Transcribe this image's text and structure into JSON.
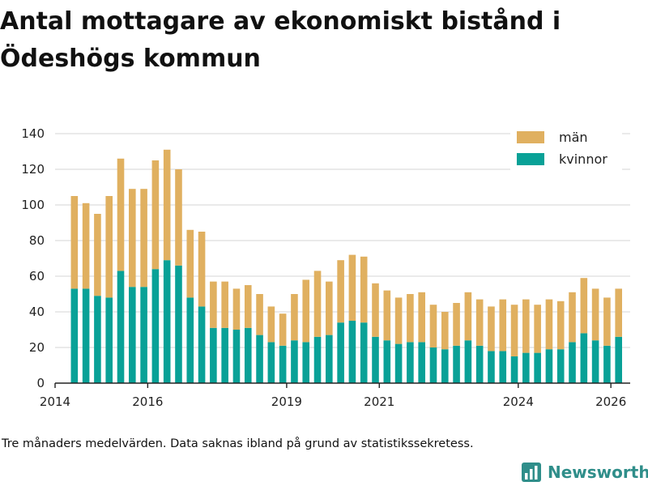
{
  "title": "Antal mottagare av ekonomiskt bistånd i Ödeshögs kommun",
  "footnote": "Tre månaders medelvärden. Data saknas ibland på grund av statistikssekretess.",
  "brand": {
    "name": "Newsworthy",
    "logo_icon": "newsworthy-chart-logo-icon",
    "color": "#2f8e8a"
  },
  "colors": {
    "men": "#e0b060",
    "women": "#09a197",
    "grid": "#dddddd",
    "axis": "#222222"
  },
  "chart_data": {
    "type": "bar",
    "stacked": true,
    "title": "Antal mottagare av ekonomiskt bistånd i Ödeshögs kommun",
    "xlabel": "",
    "ylabel": "",
    "ylim": [
      0,
      140
    ],
    "yticks": [
      0,
      20,
      40,
      60,
      80,
      100,
      120,
      140
    ],
    "grid": true,
    "legend_position": "top-right",
    "x_start": "2014-01",
    "x_end": "2026-06",
    "xticks": [
      {
        "label": "2014",
        "date": "2014-01"
      },
      {
        "label": "2016",
        "date": "2016-01"
      },
      {
        "label": "2019",
        "date": "2019-01"
      },
      {
        "label": "2021",
        "date": "2021-01"
      },
      {
        "label": "2024",
        "date": "2024-01"
      },
      {
        "label": "2026",
        "date": "2026-01"
      }
    ],
    "categories": [
      "2014-06",
      "2014-09",
      "2014-12",
      "2015-03",
      "2015-06",
      "2015-09",
      "2015-12",
      "2016-03",
      "2016-06",
      "2016-09",
      "2016-12",
      "2017-03",
      "2017-06",
      "2017-09",
      "2017-12",
      "2018-03",
      "2018-06",
      "2018-09",
      "2018-12",
      "2019-03",
      "2019-06",
      "2019-09",
      "2019-12",
      "2020-03",
      "2020-06",
      "2020-09",
      "2020-12",
      "2021-03",
      "2021-06",
      "2021-09",
      "2021-12",
      "2022-03",
      "2022-06",
      "2022-09",
      "2022-12",
      "2023-03",
      "2023-06",
      "2023-09",
      "2023-12",
      "2024-03",
      "2024-06",
      "2024-09",
      "2024-12",
      "2025-03",
      "2025-06",
      "2025-09",
      "2025-12",
      "2026-03"
    ],
    "series": [
      {
        "name": "kvinnor",
        "color": "#09a197",
        "values": [
          53,
          53,
          49,
          48,
          63,
          54,
          54,
          64,
          69,
          66,
          48,
          43,
          31,
          31,
          30,
          31,
          27,
          23,
          21,
          24,
          23,
          26,
          27,
          34,
          35,
          34,
          26,
          24,
          22,
          23,
          23,
          20,
          19,
          21,
          24,
          21,
          18,
          18,
          15,
          17,
          17,
          19,
          19,
          23,
          28,
          24,
          21,
          26
        ]
      },
      {
        "name": "män",
        "color": "#e0b060",
        "values": [
          52,
          48,
          46,
          57,
          63,
          55,
          55,
          61,
          62,
          54,
          38,
          42,
          26,
          26,
          23,
          24,
          23,
          20,
          18,
          26,
          35,
          37,
          30,
          35,
          37,
          37,
          30,
          28,
          26,
          27,
          28,
          24,
          21,
          24,
          27,
          26,
          25,
          29,
          29,
          30,
          27,
          28,
          27,
          28,
          31,
          29,
          27,
          27
        ]
      }
    ],
    "legend": [
      {
        "label": "män",
        "color": "#e0b060"
      },
      {
        "label": "kvinnor",
        "color": "#09a197"
      }
    ]
  }
}
